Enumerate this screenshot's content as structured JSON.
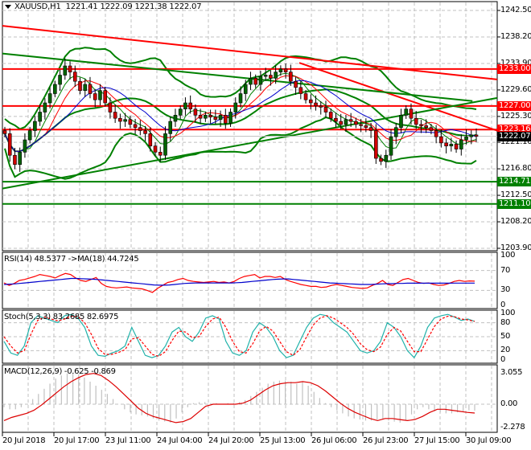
{
  "header": {
    "symbol": "XAUUSD,H1",
    "ohlc": "1221.41 1222.09 1221.38 1222.07"
  },
  "colors": {
    "bull": "#006400",
    "bear": "#d00000",
    "resistance": "#ff0000",
    "support": "#008000",
    "grid": "#c0c0c0",
    "rsi": "#ff0000",
    "rsi_ma": "#0000cc",
    "stoch_main": "#20b2aa",
    "stoch_signal": "#ff0000",
    "macd_hist": "#c0c0c0",
    "macd_signal": "#dd0000",
    "bid_tag_bg": "#000000"
  },
  "price_axis": {
    "labels": [
      "1242.50",
      "1238.20",
      "1233.90",
      "1229.60",
      "1225.30",
      "1221.10",
      "1216.80",
      "1212.50",
      "1208.20",
      "1203.90"
    ],
    "tags": [
      {
        "value": "1233.00",
        "color": "#ff0000"
      },
      {
        "value": "1227.00",
        "color": "#ff0000"
      },
      {
        "value": "1223.16",
        "color": "#ff0000"
      },
      {
        "value": "1222.07",
        "color": "#000000"
      },
      {
        "value": "1214.71",
        "color": "#008000"
      },
      {
        "value": "1211.10",
        "color": "#008000"
      }
    ]
  },
  "rsi": {
    "label": "RSI(14) 48.5377  ->MA(18) 44.7245",
    "axis": [
      "100",
      "70",
      "30",
      "0"
    ]
  },
  "stoch": {
    "label": "Stoch(5,3,3) 83.2685 82.6975",
    "axis": [
      "100",
      "80",
      "50",
      "20",
      "0"
    ]
  },
  "macd": {
    "label": "MACD(12,26,9) -0.625 -0.869",
    "axis": [
      "3.055",
      "0.00",
      "-2.278"
    ]
  },
  "time_axis": [
    "20 Jul 2018",
    "20 Jul 17:00",
    "23 Jul 11:00",
    "24 Jul 04:00",
    "24 Jul 20:00",
    "25 Jul 13:00",
    "26 Jul 06:00",
    "26 Jul 23:00",
    "27 Jul 15:00",
    "30 Jul 09:00"
  ],
  "chart_data": [
    {
      "type": "candlestick",
      "title": "XAUUSD,H1",
      "ylim": [
        1203.9,
        1242.5
      ],
      "yticks": [
        1242.5,
        1238.2,
        1233.9,
        1229.6,
        1225.3,
        1221.1,
        1216.8,
        1212.5,
        1208.2,
        1203.9
      ],
      "x": [
        "20 Jul 2018",
        "20 Jul 17:00",
        "23 Jul 11:00",
        "24 Jul 04:00",
        "24 Jul 20:00",
        "25 Jul 13:00",
        "26 Jul 06:00",
        "26 Jul 23:00",
        "27 Jul 15:00",
        "30 Jul 09:00"
      ],
      "last_ohlc": {
        "open": 1221.41,
        "high": 1222.09,
        "low": 1221.38,
        "close": 1222.07
      },
      "close_series": [
        1222.5,
        1219.0,
        1217.5,
        1219.5,
        1221.5,
        1223.0,
        1224.5,
        1226.0,
        1227.5,
        1229.0,
        1230.5,
        1232.0,
        1233.5,
        1232.5,
        1231.0,
        1229.5,
        1230.5,
        1229.0,
        1228.0,
        1229.5,
        1227.5,
        1226.0,
        1225.0,
        1224.5,
        1224.8,
        1224.0,
        1223.5,
        1223.0,
        1222.5,
        1220.5,
        1219.5,
        1219.0,
        1222.5,
        1224.5,
        1225.5,
        1226.5,
        1227.5,
        1226.5,
        1225.5,
        1225.0,
        1225.5,
        1225.2,
        1224.8,
        1225.5,
        1224.2,
        1226.0,
        1227.5,
        1229.0,
        1230.5,
        1231.5,
        1230.5,
        1231.8,
        1232.0,
        1231.5,
        1232.5,
        1233.0,
        1232.5,
        1231.0,
        1230.0,
        1229.0,
        1228.0,
        1227.5,
        1227.0,
        1226.8,
        1226.0,
        1225.0,
        1224.5,
        1224.0,
        1224.8,
        1224.5,
        1224.0,
        1223.8,
        1223.5,
        1223.0,
        1218.5,
        1218.0,
        1219.0,
        1222.0,
        1223.5,
        1225.5,
        1226.5,
        1225.0,
        1224.0,
        1223.8,
        1223.5,
        1223.0,
        1222.0,
        1221.0,
        1220.5,
        1220.8,
        1220.0,
        1221.5,
        1222.0,
        1222.3,
        1222.07
      ],
      "horizontal_levels": [
        {
          "price": 1233.0,
          "color": "red",
          "role": "resistance"
        },
        {
          "price": 1227.0,
          "color": "red",
          "role": "resistance"
        },
        {
          "price": 1223.16,
          "color": "red",
          "role": "resistance"
        },
        {
          "price": 1214.71,
          "color": "green",
          "role": "support"
        },
        {
          "price": 1211.1,
          "color": "green",
          "role": "support"
        }
      ],
      "trendlines": [
        {
          "color": "red",
          "from": [
            0,
            1240.0
          ],
          "to": [
            1.0,
            1231.3
          ]
        },
        {
          "color": "red",
          "from": [
            0.6,
            1234.0
          ],
          "to": [
            1.0,
            1223.0
          ]
        },
        {
          "color": "green",
          "from": [
            0,
            1213.6
          ],
          "to": [
            1.0,
            1228.3
          ]
        },
        {
          "color": "green",
          "from": [
            0,
            1235.5
          ],
          "to": [
            0.95,
            1227.8
          ]
        }
      ],
      "indicators": [
        "Bollinger Bands (green)",
        "Moving averages (green, red, blue)"
      ]
    },
    {
      "type": "line",
      "title": "RSI(14) 48.5377 ->MA(18) 44.7245",
      "ylim": [
        0,
        100
      ],
      "yticks": [
        100,
        70,
        30,
        0
      ],
      "series": [
        {
          "name": "RSI(14)",
          "last": 48.5377,
          "values": [
            45,
            40,
            44,
            50,
            52,
            55,
            58,
            62,
            60,
            58,
            55,
            60,
            64,
            62,
            55,
            50,
            48,
            52,
            56,
            44,
            38,
            36,
            35,
            36,
            37,
            35,
            34,
            33,
            30,
            26,
            34,
            40,
            46,
            48,
            52,
            54,
            50,
            48,
            47,
            46,
            47,
            48,
            46,
            47,
            45,
            48,
            54,
            58,
            60,
            62,
            55,
            58,
            58,
            56,
            58,
            52,
            48,
            45,
            42,
            40,
            38,
            38,
            36,
            37,
            40,
            42,
            40,
            38,
            36,
            35,
            34,
            35,
            40,
            44,
            50,
            42,
            40,
            46,
            52,
            54,
            50,
            46,
            44,
            45,
            42,
            40,
            41,
            44,
            48,
            50,
            48,
            49,
            48.5
          ]
        },
        {
          "name": "MA(18)",
          "last": 44.7245,
          "values": [
            42,
            42.5,
            43,
            44,
            45,
            46,
            47,
            48,
            49,
            50,
            51,
            52,
            53,
            54,
            54,
            53.5,
            53,
            52.5,
            52,
            51,
            50,
            49,
            48,
            47,
            46,
            45,
            44,
            43,
            42,
            41,
            40.5,
            40.5,
            41,
            42,
            43,
            44,
            44.5,
            45,
            45,
            45,
            45,
            45,
            45,
            45,
            45,
            45.5,
            46,
            47,
            48,
            49,
            50,
            51,
            52,
            52.5,
            53,
            53,
            52,
            51,
            50,
            49,
            48,
            47,
            46,
            45,
            44.5,
            44,
            43.5,
            43,
            42.5,
            42,
            42,
            42,
            42.5,
            43,
            43.5,
            43.5,
            44,
            44,
            44.5,
            44.5,
            44.5,
            44.5,
            44.5,
            44.5,
            44.5,
            44.5,
            44.5,
            44.6,
            44.7,
            44.7,
            44.7,
            44.7245
          ]
        }
      ]
    },
    {
      "type": "line",
      "title": "Stoch(5,3,3) 83.2685 82.6975",
      "ylim": [
        0,
        100
      ],
      "yticks": [
        100,
        80,
        50,
        20,
        0
      ],
      "series": [
        {
          "name": "Main",
          "last": 83.2685,
          "values": [
            40,
            15,
            10,
            30,
            80,
            95,
            90,
            85,
            80,
            95,
            98,
            90,
            70,
            30,
            10,
            8,
            15,
            20,
            30,
            70,
            40,
            10,
            5,
            10,
            30,
            60,
            70,
            50,
            40,
            60,
            90,
            95,
            88,
            40,
            15,
            10,
            20,
            60,
            80,
            70,
            50,
            20,
            5,
            10,
            40,
            70,
            90,
            98,
            95,
            80,
            70,
            60,
            40,
            20,
            15,
            20,
            40,
            80,
            70,
            50,
            20,
            5,
            30,
            70,
            90,
            95,
            98,
            92,
            85,
            88,
            83
          ]
        },
        {
          "name": "Signal",
          "last": 82.6975,
          "values": [
            50,
            30,
            15,
            20,
            55,
            85,
            92,
            88,
            84,
            88,
            94,
            93,
            80,
            55,
            25,
            12,
            12,
            16,
            22,
            45,
            48,
            30,
            12,
            8,
            18,
            42,
            62,
            60,
            48,
            50,
            72,
            88,
            92,
            70,
            40,
            18,
            15,
            35,
            62,
            72,
            62,
            40,
            18,
            10,
            22,
            50,
            75,
            90,
            95,
            90,
            80,
            70,
            55,
            35,
            22,
            18,
            28,
            55,
            70,
            62,
            40,
            18,
            18,
            45,
            72,
            88,
            94,
            93,
            88,
            86,
            82.7
          ]
        }
      ]
    },
    {
      "type": "bar",
      "title": "MACD(12,26,9) -0.625 -0.869",
      "ylim": [
        -2.278,
        3.055
      ],
      "yticks": [
        3.055,
        0.0,
        -2.278
      ],
      "series": [
        {
          "name": "MACD histogram",
          "last": -0.625,
          "values": [
            -0.3,
            -0.5,
            -0.5,
            -0.3,
            0,
            0.5,
            1.0,
            1.5,
            2.0,
            2.5,
            2.8,
            3.0,
            3.0,
            2.9,
            2.6,
            2.2,
            1.8,
            1.4,
            1.0,
            0.5,
            0,
            -0.5,
            -0.8,
            -1.0,
            -1.1,
            -1.2,
            -1.4,
            -1.6,
            -1.7,
            -1.8,
            -1.4,
            -0.8,
            -0.3,
            0.1,
            0.2,
            0.2,
            0.1,
            0.1,
            0.0,
            0.1,
            0.1,
            0.2,
            0.4,
            0.8,
            1.2,
            1.6,
            2.0,
            2.2,
            2.3,
            2.3,
            2.2,
            2.0,
            2.2,
            1.8,
            1.2,
            0.6,
            0.1,
            -0.3,
            -0.6,
            -0.9,
            -1.2,
            -1.4,
            -1.5,
            -1.6,
            -1.6,
            -1.5,
            -1.5,
            -1.6,
            -1.7,
            -1.8,
            -1.6,
            -1.0,
            -0.5,
            -0.3,
            -0.5,
            -0.7,
            -0.8,
            -0.9,
            -0.9,
            -0.8,
            -0.7,
            -0.6,
            -0.625
          ]
        },
        {
          "name": "Signal line",
          "last": -0.869,
          "values": [
            -1.6,
            -1.3,
            -1.1,
            -0.9,
            -0.6,
            -0.1,
            0.5,
            1.1,
            1.7,
            2.2,
            2.6,
            2.9,
            3.0,
            2.8,
            2.3,
            1.7,
            1.0,
            0.3,
            -0.4,
            -0.9,
            -1.2,
            -1.4,
            -1.6,
            -1.8,
            -1.7,
            -1.4,
            -0.8,
            -0.2,
            0.0,
            0.0,
            0.0,
            0.0,
            0.1,
            0.4,
            0.9,
            1.4,
            1.8,
            2.0,
            2.1,
            2.1,
            2.2,
            2.1,
            1.8,
            1.3,
            0.7,
            0.1,
            -0.4,
            -0.8,
            -1.1,
            -1.4,
            -1.6,
            -1.4,
            -1.4,
            -1.5,
            -1.6,
            -1.5,
            -1.2,
            -0.8,
            -0.5,
            -0.5,
            -0.6,
            -0.7,
            -0.8,
            -0.87
          ]
        }
      ]
    }
  ]
}
